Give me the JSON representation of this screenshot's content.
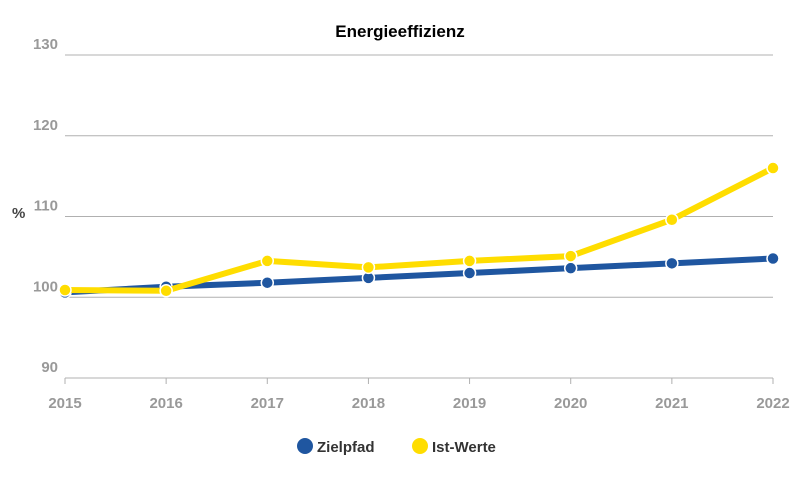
{
  "chart_data": {
    "type": "line",
    "title": "Energieeffizienz",
    "xlabel": "",
    "ylabel": "%",
    "categories": [
      "2015",
      "2016",
      "2017",
      "2018",
      "2019",
      "2020",
      "2021",
      "2022"
    ],
    "ylim": [
      90,
      130
    ],
    "yticks": [
      90,
      100,
      110,
      120,
      130
    ],
    "grid": true,
    "legend": "bottom",
    "series": [
      {
        "name": "Zielpfad",
        "color": "#1f56a0",
        "values": [
          100.6,
          101.3,
          101.8,
          102.4,
          103.0,
          103.6,
          104.2,
          104.8
        ]
      },
      {
        "name": "Ist-Werte",
        "color": "#ffdd00",
        "values": [
          100.9,
          100.8,
          104.5,
          103.7,
          104.5,
          105.1,
          109.6,
          116.0
        ]
      }
    ]
  }
}
